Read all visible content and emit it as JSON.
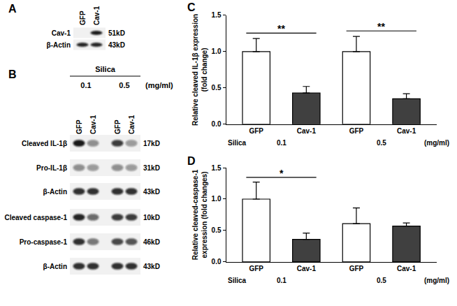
{
  "chart_data": [
    {
      "type": "bar",
      "panel": "C",
      "ylabel": [
        "Relative cleaved IL-1β expression",
        "(fold change)"
      ],
      "categories": [
        "GFP",
        "Cav-1",
        "GFP",
        "Cav-1"
      ],
      "values": [
        1.0,
        0.43,
        1.0,
        0.35
      ],
      "errors": [
        0.18,
        0.09,
        0.21,
        0.07
      ],
      "colors": [
        "#ffffff",
        "#404040",
        "#ffffff",
        "#404040"
      ],
      "ylim": [
        0,
        1.5
      ],
      "yticks": [
        {
          "value": 0,
          "label": "0.0"
        },
        0.5,
        {
          "value": 1,
          "label": "1.0"
        },
        1.5
      ],
      "grid": false,
      "group_title": "Silica",
      "groups": [
        {
          "label": "0.1",
          "categories": [
            0,
            1
          ]
        },
        {
          "label": "0.5",
          "categories": [
            2,
            3
          ]
        }
      ],
      "group_unit": "(mg/ml)",
      "significance": [
        {
          "categories": [
            0,
            1
          ],
          "label": "**"
        },
        {
          "categories": [
            2,
            3
          ],
          "label": "**"
        }
      ]
    },
    {
      "type": "bar",
      "panel": "D",
      "ylabel": [
        "Relative cleaved-caspase-1",
        "expression (fold changes)"
      ],
      "categories": [
        "GFP",
        "Cav-1",
        "GFP",
        "Cav-1"
      ],
      "values": [
        1.0,
        0.36,
        0.61,
        0.57
      ],
      "errors": [
        0.27,
        0.1,
        0.25,
        0.05
      ],
      "colors": [
        "#ffffff",
        "#404040",
        "#ffffff",
        "#404040"
      ],
      "ylim": [
        0,
        1.5
      ],
      "yticks": [
        {
          "value": 0,
          "label": "0.0"
        },
        0.5,
        {
          "value": 1,
          "label": "1.0"
        },
        1.5
      ],
      "grid": false,
      "group_title": "Silica",
      "groups": [
        {
          "label": "0.1",
          "categories": [
            0,
            1
          ]
        },
        {
          "label": "0.5",
          "categories": [
            2,
            3
          ]
        }
      ],
      "group_unit": "(mg/ml)",
      "significance": [
        {
          "categories": [
            0,
            1
          ],
          "label": "*"
        }
      ]
    }
  ],
  "blots": [
    {
      "panel": "A",
      "lanes": [
        "GFP",
        "Cav-1"
      ],
      "rows": [
        {
          "label": "Cav-1",
          "size": "51kD",
          "intensity": [
            0,
            0.95
          ]
        },
        {
          "label": "β-Actin",
          "size": "43kD",
          "intensity": [
            0.9,
            0.9
          ]
        }
      ]
    },
    {
      "panel": "B",
      "group_title": "Silica",
      "groups": [
        {
          "label": "0.1",
          "lanes": [
            0,
            1
          ]
        },
        {
          "label": "0.5",
          "lanes": [
            2,
            3
          ]
        }
      ],
      "group_unit": "(mg/ml)",
      "lanes": [
        "GFP",
        "Cav-1",
        "GFP",
        "Cav-1"
      ],
      "rows": [
        {
          "label": "Cleaved IL-1β",
          "size": "17kD",
          "intensity": [
            0.95,
            0.45,
            0.8,
            0.4
          ]
        },
        {
          "label": "Pro-IL-1β",
          "size": "31kD",
          "intensity": [
            0.45,
            0.4,
            0.45,
            0.4
          ]
        },
        {
          "label": "β-Actin",
          "size": "43kD",
          "intensity": [
            0.85,
            0.85,
            0.85,
            0.85
          ]
        },
        {
          "label": "Cleaved caspase-1",
          "size": "10kD",
          "intensity": [
            0.9,
            0.6,
            0.8,
            0.8
          ]
        },
        {
          "label": "Pro-caspase-1",
          "size": "46kD",
          "intensity": [
            0.85,
            0.55,
            0.75,
            0.7
          ]
        },
        {
          "label": "β-Actin",
          "size": "43kD",
          "intensity": [
            0.85,
            0.85,
            0.85,
            0.85
          ]
        }
      ]
    }
  ]
}
